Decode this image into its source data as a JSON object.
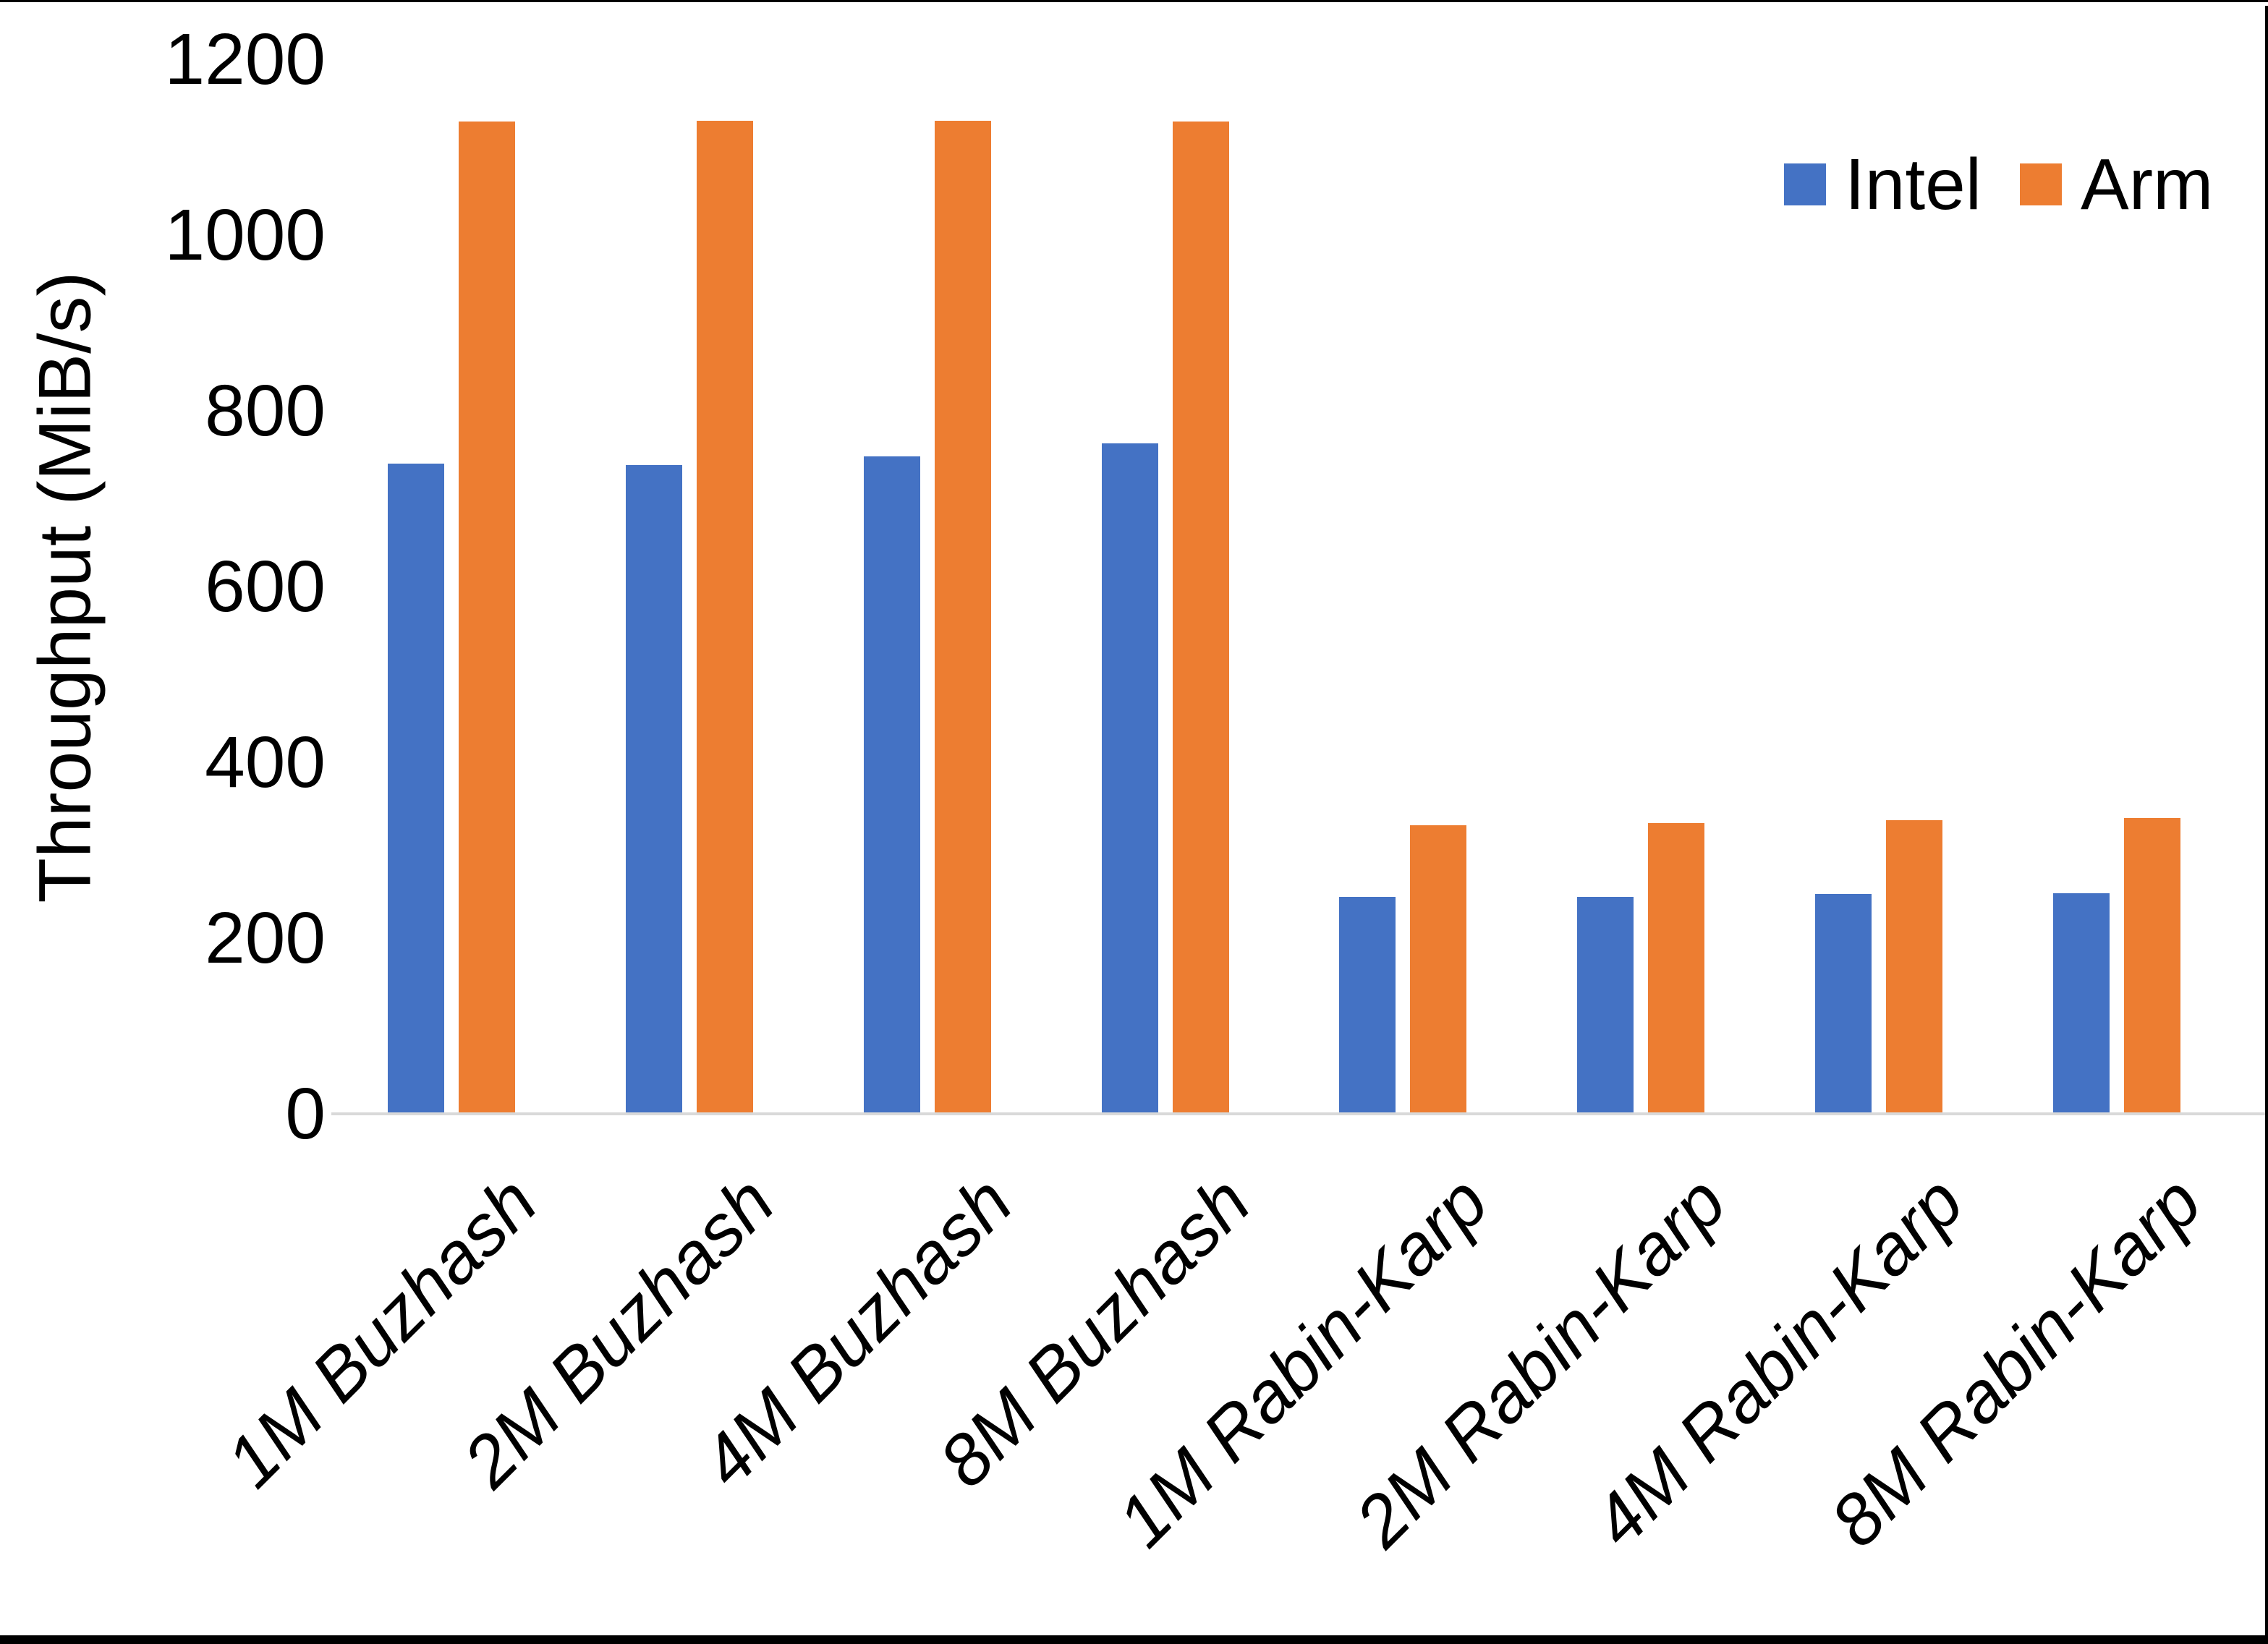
{
  "figure": {
    "background": "#ffffff",
    "border_color": "#000000"
  },
  "legend": {
    "items": [
      {
        "label": "Intel",
        "color": "#4472C4"
      },
      {
        "label": "Arm",
        "color": "#ED7D31"
      }
    ]
  },
  "chart_data": {
    "type": "bar",
    "title": "",
    "xlabel": "",
    "ylabel": "Throughput (MiB/s)",
    "categories": [
      "1M Buzhash",
      "2M Buzhash",
      "4M Buzhash",
      "8M Buzhash",
      "1M Rabin-Karp",
      "2M Rabin-Karp",
      "4M Rabin-Karp",
      "8M Rabin-Karp"
    ],
    "series": [
      {
        "name": "Intel",
        "color": "#4472C4",
        "values": [
          740,
          738,
          748,
          763,
          247,
          247,
          250,
          251
        ]
      },
      {
        "name": "Arm",
        "color": "#ED7D31",
        "values": [
          1129,
          1130,
          1130,
          1129,
          328,
          331,
          334,
          337
        ]
      }
    ],
    "ylim": [
      0,
      1200
    ],
    "yticks": [
      0,
      200,
      400,
      600,
      800,
      1000,
      1200
    ],
    "grid": false,
    "legend_position": "top-right",
    "axis_line_color": "#d9d9d9",
    "text_color": "#000000"
  }
}
